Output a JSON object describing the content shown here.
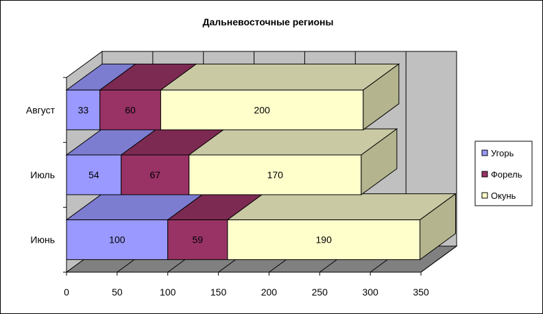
{
  "chart_data": {
    "type": "bar",
    "orientation": "horizontal",
    "stacked": true,
    "style_3d": true,
    "title": "Дальневосточные регионы",
    "categories": [
      "Июнь",
      "Июль",
      "Август"
    ],
    "series": [
      {
        "name": "Угорь",
        "values": [
          100,
          54,
          33
        ],
        "color": "#9999ff",
        "top_color": "#7c7cd0",
        "side_color": "#6a6abc"
      },
      {
        "name": "Форель",
        "values": [
          59,
          67,
          60
        ],
        "color": "#993366",
        "top_color": "#7d2a52",
        "side_color": "#6b2447"
      },
      {
        "name": "Окунь",
        "values": [
          190,
          170,
          200
        ],
        "color": "#ffffcc",
        "top_color": "#c9c9a4",
        "side_color": "#b4b48e"
      }
    ],
    "x_ticks": [
      "0",
      "50",
      "100",
      "150",
      "200",
      "250",
      "300",
      "350"
    ],
    "xlim": [
      0,
      350
    ],
    "grid": true,
    "legend_position": "right",
    "wall_color": "#c0c0c0",
    "floor_color": "#808080"
  }
}
